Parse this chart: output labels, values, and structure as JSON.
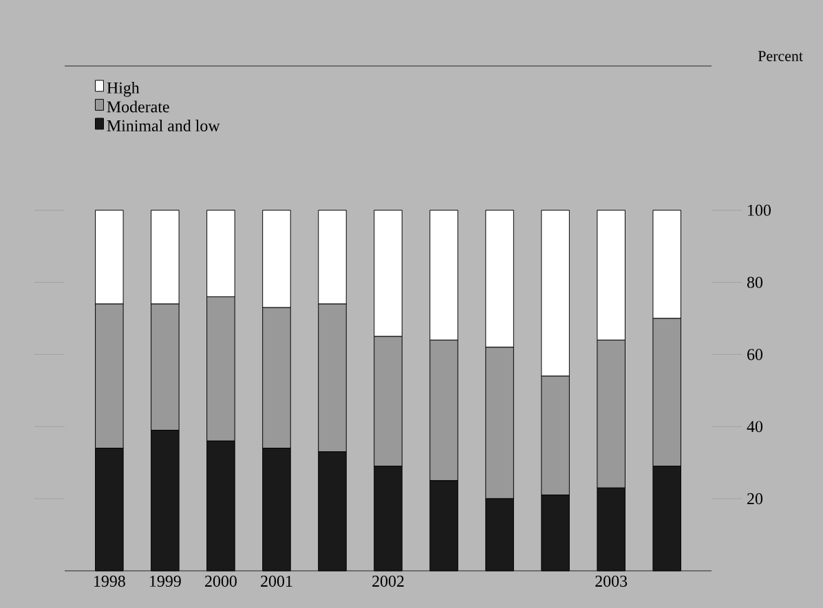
{
  "chart_data": {
    "type": "bar",
    "stacked": true,
    "ylabel": "Percent",
    "categories": [
      "1998",
      "1999",
      "2000",
      "2001",
      null,
      "2002",
      null,
      null,
      null,
      "2003",
      null
    ],
    "series": [
      {
        "name": "Minimal and low",
        "color": "#1a1a1a",
        "values": [
          34,
          39,
          36,
          34,
          33,
          29,
          25,
          20,
          21,
          23,
          29
        ]
      },
      {
        "name": "Moderate",
        "color": "#999999",
        "values": [
          40,
          35,
          40,
          39,
          41,
          36,
          39,
          42,
          33,
          41,
          41
        ]
      },
      {
        "name": "High",
        "color": "#ffffff",
        "values": [
          26,
          26,
          24,
          27,
          26,
          35,
          36,
          38,
          46,
          36,
          30
        ]
      }
    ],
    "ylim": [
      0,
      140
    ],
    "yticks": [
      20,
      40,
      60,
      80,
      100
    ],
    "legend": "top left"
  }
}
